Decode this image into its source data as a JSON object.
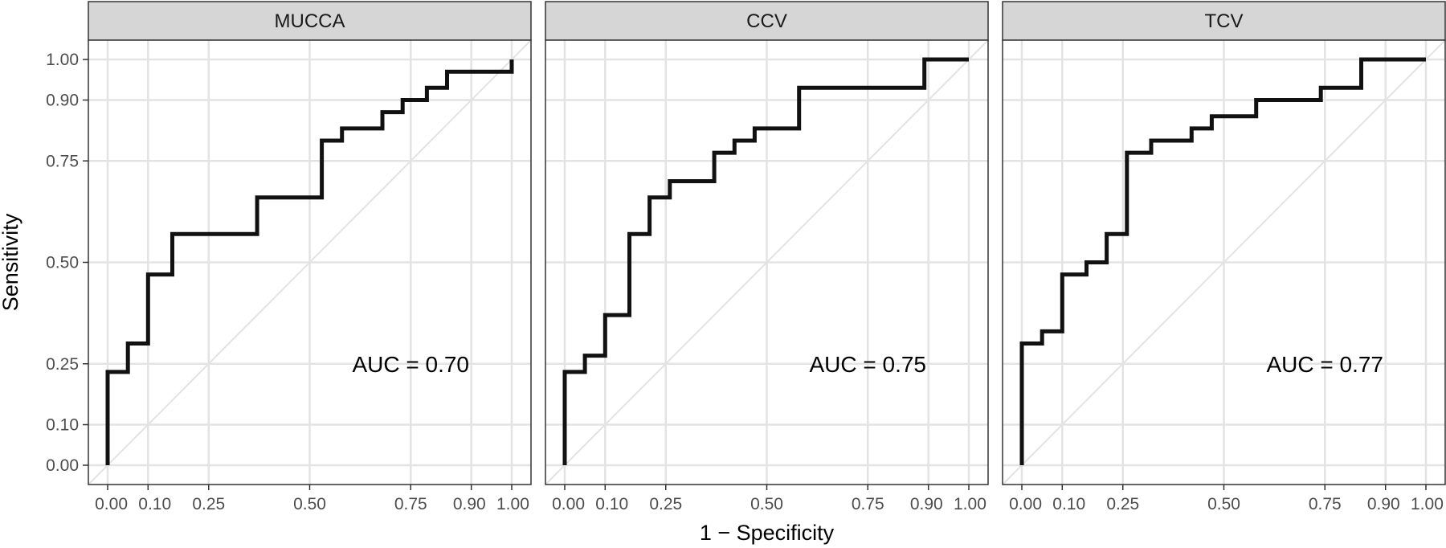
{
  "chart_data": {
    "type": "line",
    "xlabel": "1 − Specificity",
    "ylabel": "Sensitivity",
    "xlim": [
      0,
      1
    ],
    "ylim": [
      0,
      1
    ],
    "x_breaks": [
      0.0,
      0.1,
      0.25,
      0.5,
      0.75,
      0.9,
      1.0
    ],
    "x_tick_labels": [
      "0.00",
      "0.10",
      "0.25",
      "0.50",
      "0.75",
      "0.90",
      "1.00"
    ],
    "y_breaks": [
      0.0,
      0.1,
      0.25,
      0.5,
      0.75,
      0.9,
      1.0
    ],
    "y_tick_labels": [
      "0.00",
      "0.10",
      "0.25",
      "0.50",
      "0.75",
      "0.90",
      "1.00"
    ],
    "grid": true,
    "reference_line": "diagonal",
    "panels": [
      {
        "name": "MUCCA",
        "auc_label": "AUC = 0.70",
        "points": [
          [
            0,
            0
          ],
          [
            0,
            0.23
          ],
          [
            0.05,
            0.23
          ],
          [
            0.05,
            0.3
          ],
          [
            0.1,
            0.3
          ],
          [
            0.1,
            0.47
          ],
          [
            0.16,
            0.47
          ],
          [
            0.16,
            0.57
          ],
          [
            0.37,
            0.57
          ],
          [
            0.37,
            0.66
          ],
          [
            0.53,
            0.66
          ],
          [
            0.53,
            0.8
          ],
          [
            0.58,
            0.8
          ],
          [
            0.58,
            0.83
          ],
          [
            0.68,
            0.83
          ],
          [
            0.68,
            0.87
          ],
          [
            0.73,
            0.87
          ],
          [
            0.73,
            0.9
          ],
          [
            0.79,
            0.9
          ],
          [
            0.79,
            0.93
          ],
          [
            0.84,
            0.93
          ],
          [
            0.84,
            0.97
          ],
          [
            1.0,
            0.97
          ],
          [
            1.0,
            1.0
          ]
        ]
      },
      {
        "name": "CCV",
        "auc_label": "AUC = 0.75",
        "points": [
          [
            0,
            0
          ],
          [
            0,
            0.23
          ],
          [
            0.05,
            0.23
          ],
          [
            0.05,
            0.27
          ],
          [
            0.1,
            0.27
          ],
          [
            0.1,
            0.37
          ],
          [
            0.16,
            0.37
          ],
          [
            0.16,
            0.57
          ],
          [
            0.21,
            0.57
          ],
          [
            0.21,
            0.66
          ],
          [
            0.26,
            0.66
          ],
          [
            0.26,
            0.7
          ],
          [
            0.37,
            0.7
          ],
          [
            0.37,
            0.77
          ],
          [
            0.42,
            0.77
          ],
          [
            0.42,
            0.8
          ],
          [
            0.47,
            0.8
          ],
          [
            0.47,
            0.83
          ],
          [
            0.58,
            0.83
          ],
          [
            0.58,
            0.93
          ],
          [
            0.89,
            0.93
          ],
          [
            0.89,
            1.0
          ],
          [
            1.0,
            1.0
          ]
        ]
      },
      {
        "name": "TCV",
        "auc_label": "AUC = 0.77",
        "points": [
          [
            0,
            0
          ],
          [
            0,
            0.3
          ],
          [
            0.05,
            0.3
          ],
          [
            0.05,
            0.33
          ],
          [
            0.1,
            0.33
          ],
          [
            0.1,
            0.47
          ],
          [
            0.16,
            0.47
          ],
          [
            0.16,
            0.5
          ],
          [
            0.21,
            0.5
          ],
          [
            0.21,
            0.57
          ],
          [
            0.26,
            0.57
          ],
          [
            0.26,
            0.77
          ],
          [
            0.32,
            0.77
          ],
          [
            0.32,
            0.8
          ],
          [
            0.42,
            0.8
          ],
          [
            0.42,
            0.83
          ],
          [
            0.47,
            0.83
          ],
          [
            0.47,
            0.86
          ],
          [
            0.58,
            0.86
          ],
          [
            0.58,
            0.9
          ],
          [
            0.74,
            0.9
          ],
          [
            0.74,
            0.93
          ],
          [
            0.84,
            0.93
          ],
          [
            0.84,
            1.0
          ],
          [
            1.0,
            1.0
          ]
        ]
      }
    ],
    "colors": {
      "curve": "#111111",
      "grid": "#e3e3e3",
      "reference": "#e3e3e3",
      "strip_fill": "#d6d6d6",
      "panel_border": "#333333"
    }
  }
}
